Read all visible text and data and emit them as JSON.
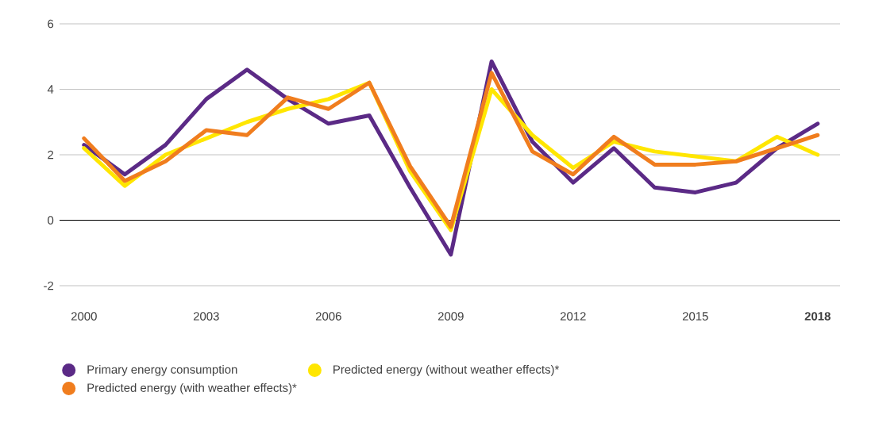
{
  "chart_data": {
    "type": "line",
    "x": [
      2000,
      2001,
      2002,
      2003,
      2004,
      2005,
      2006,
      2007,
      2008,
      2009,
      2010,
      2011,
      2012,
      2013,
      2014,
      2015,
      2016,
      2017,
      2018
    ],
    "series": [
      {
        "name": "Primary energy consumption",
        "color": "#5b2a86",
        "values": [
          2.3,
          1.4,
          2.3,
          3.7,
          4.6,
          3.7,
          2.95,
          3.2,
          1.0,
          -1.05,
          4.85,
          2.4,
          1.15,
          2.2,
          1.0,
          0.85,
          1.15,
          2.2,
          2.95
        ]
      },
      {
        "name": "Predicted energy (without weather effects)*",
        "color": "#ffe600",
        "values": [
          2.2,
          1.05,
          2.0,
          2.5,
          3.0,
          3.4,
          3.7,
          4.2,
          1.5,
          -0.3,
          4.0,
          2.6,
          1.6,
          2.4,
          2.1,
          1.95,
          1.8,
          2.55,
          2.0
        ]
      },
      {
        "name": "Predicted energy (with weather effects)*",
        "color": "#f07d1e",
        "values": [
          2.5,
          1.2,
          1.8,
          2.75,
          2.6,
          3.75,
          3.4,
          4.2,
          1.65,
          -0.2,
          4.5,
          2.1,
          1.4,
          2.55,
          1.7,
          1.7,
          1.8,
          2.2,
          2.6
        ]
      }
    ],
    "xlim": [
      1999.4,
      2018.55
    ],
    "xticks": [
      2000,
      2003,
      2006,
      2009,
      2012,
      2015,
      {
        "value": 2018,
        "label": "**2018**"
      }
    ],
    "ylim": [
      -2,
      6
    ],
    "yticks": [
      -2,
      0,
      2,
      4,
      6
    ],
    "ref_lines": [
      {
        "axis": "y",
        "value": 0,
        "color": "#000000"
      }
    ],
    "grid": "y",
    "legend": "bottom",
    "marker": "none",
    "line_style": "solid"
  }
}
